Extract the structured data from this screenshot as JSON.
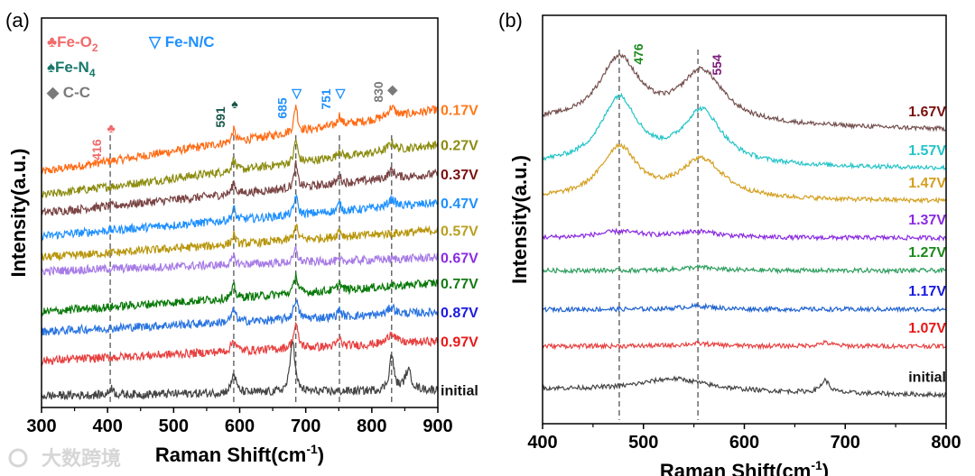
{
  "watermark": "大数跨境",
  "chart_data": [
    {
      "panel": "(a)",
      "type": "line",
      "xlabel": "Raman Shift(cm",
      "xlabel_sup": "-1",
      "xlabel_end": ")",
      "ylabel": "Intensity(a.u.)",
      "xlim": [
        300,
        900
      ],
      "ylim": [
        0,
        100
      ],
      "xticks": [
        300,
        400,
        500,
        600,
        700,
        800,
        900
      ],
      "legend": [
        {
          "symbol": "♣",
          "text": "Fe-O",
          "sub": "2",
          "color": "#f06a6a"
        },
        {
          "symbol": "▽",
          "text": " Fe-N/C",
          "sub": "",
          "color": "#1e90ff"
        },
        {
          "symbol": "♠",
          "text": "Fe-N",
          "sub": "4",
          "color": "#17786a"
        },
        {
          "symbol": "◆",
          "text": " C-C",
          "sub": "",
          "color": "#7a7a7a"
        }
      ],
      "markers": [
        {
          "x": 404,
          "label": "416",
          "symbol": "♣",
          "color": "#f06a6a"
        },
        {
          "x": 591,
          "label": "591",
          "symbol": "♠",
          "color": "#17564a"
        },
        {
          "x": 685,
          "label": "685",
          "symbol": "▽",
          "color": "#1e90ff"
        },
        {
          "x": 751,
          "label": "751",
          "symbol": "▽",
          "color": "#1e90ff"
        },
        {
          "x": 830,
          "label": "830",
          "symbol": "◆",
          "color": "#7a7a7a"
        }
      ],
      "series": [
        {
          "name": "0.17V",
          "color": "#ff6a13",
          "label_color": "#ff7a1a",
          "start": 60.5,
          "end": 76.5,
          "peaks": [
            [
              591,
              3,
              3
            ],
            [
              685,
              7,
              3
            ],
            [
              751,
              2.5,
              3
            ],
            [
              830,
              2.5,
              6
            ]
          ]
        },
        {
          "name": "0.27V",
          "color": "#8c8c10",
          "label_color": "#8c8c10",
          "start": 54.5,
          "end": 67.5,
          "peaks": [
            [
              591,
              3,
              3
            ],
            [
              685,
              6,
              3
            ],
            [
              751,
              2,
              3
            ],
            [
              830,
              2,
              6
            ]
          ]
        },
        {
          "name": "0.37V",
          "color": "#7a4444",
          "label_color": "#7a1010",
          "start": 50,
          "end": 60,
          "peaks": [
            [
              591,
              3,
              3
            ],
            [
              685,
              6,
              3
            ],
            [
              751,
              2,
              3
            ],
            [
              830,
              2,
              6
            ]
          ]
        },
        {
          "name": "0.47V",
          "color": "#1e90ff",
          "label_color": "#1e90ff",
          "start": 44,
          "end": 52.5,
          "peaks": [
            [
              591,
              3,
              3
            ],
            [
              685,
              5,
              3
            ],
            [
              751,
              2,
              3
            ],
            [
              830,
              2,
              6
            ]
          ]
        },
        {
          "name": "0.57V",
          "color": "#b8960c",
          "label_color": "#b8a020",
          "start": 38.5,
          "end": 45.5,
          "peaks": [
            [
              591,
              2.5,
              3
            ],
            [
              685,
              4,
              3
            ],
            [
              751,
              2,
              3
            ]
          ]
        },
        {
          "name": "0.67V",
          "color": "#a77ce6",
          "label_color": "#8a2be2",
          "start": 35,
          "end": 38.5,
          "peaks": [
            [
              591,
              2,
              3
            ],
            [
              685,
              3.5,
              3
            ]
          ]
        },
        {
          "name": "0.77V",
          "color": "#0a7a0a",
          "label_color": "#157a15",
          "start": 24.5,
          "end": 32,
          "peaks": [
            [
              591,
              3,
              3
            ],
            [
              685,
              5,
              3
            ],
            [
              751,
              2,
              3
            ]
          ]
        },
        {
          "name": "0.87V",
          "color": "#2a74e0",
          "label_color": "#1a1ae0",
          "start": 19.5,
          "end": 24.5,
          "peaks": [
            [
              591,
              3,
              4
            ],
            [
              685,
              5,
              4
            ],
            [
              751,
              2,
              3
            ],
            [
              830,
              2,
              6
            ]
          ]
        },
        {
          "name": "0.97V",
          "color": "#e84040",
          "label_color": "#e81818",
          "start": 12,
          "end": 17,
          "peaks": [
            [
              591,
              3,
              4
            ],
            [
              685,
              6,
              4
            ],
            [
              751,
              2,
              3
            ],
            [
              830,
              3,
              6
            ]
          ]
        },
        {
          "name": "initial",
          "color": "#444444",
          "label_color": "#111111",
          "start": 3,
          "end": 4.5,
          "peaks": [
            [
              406,
              2,
              3
            ],
            [
              591,
              5,
              4
            ],
            [
              680,
              14,
              4
            ],
            [
              830,
              9,
              4
            ],
            [
              855,
              5,
              6
            ]
          ]
        }
      ]
    },
    {
      "panel": "(b)",
      "type": "line",
      "xlabel": "Raman Shift(cm",
      "xlabel_sup": "-1",
      "xlabel_end": ")",
      "ylabel": "Intensity(a.u.)",
      "xlim": [
        400,
        800
      ],
      "ylim": [
        0,
        100
      ],
      "xticks": [
        400,
        500,
        600,
        700,
        800
      ],
      "markers": [
        {
          "x": 476,
          "label": "476",
          "color": "#1a8a1a"
        },
        {
          "x": 554,
          "label": "554",
          "color": "#7a1a7a"
        }
      ],
      "series": [
        {
          "name": "1.67V",
          "color": "#74504e",
          "label_color": "#7a1010",
          "start": 74,
          "end": 72,
          "peaks": [
            [
              476,
              15.5,
              24
            ],
            [
              558,
              12.5,
              26
            ]
          ]
        },
        {
          "name": "1.57V",
          "color": "#22c4c8",
          "label_color": "#22c4c8",
          "start": 63.5,
          "end": 62.5,
          "peaks": [
            [
              476,
              16,
              22
            ],
            [
              558,
              13,
              24
            ]
          ]
        },
        {
          "name": "1.47V",
          "color": "#d4a020",
          "label_color": "#d4a020",
          "start": 55,
          "end": 54.5,
          "peaks": [
            [
              476,
              12.5,
              22
            ],
            [
              558,
              9.5,
              26
            ]
          ]
        },
        {
          "name": "1.37V",
          "color": "#8a2be2",
          "label_color": "#8a2be2",
          "start": 45.5,
          "end": 45.5,
          "peaks": [
            [
              476,
              1.5,
              25
            ],
            [
              554,
              1.5,
              25
            ]
          ]
        },
        {
          "name": "1.27V",
          "color": "#2e9e5e",
          "label_color": "#1a8a1a",
          "start": 37.5,
          "end": 37.5,
          "peaks": [
            [
              554,
              0.8,
              20
            ]
          ]
        },
        {
          "name": "1.17V",
          "color": "#1e62d0",
          "label_color": "#1a1ae0",
          "start": 28,
          "end": 28,
          "peaks": [
            [
              554,
              0.8,
              20
            ]
          ]
        },
        {
          "name": "1.07V",
          "color": "#e84040",
          "label_color": "#e81818",
          "start": 19,
          "end": 19,
          "peaks": [
            [
              554,
              0.6,
              20
            ],
            [
              680,
              0.8,
              8
            ]
          ]
        },
        {
          "name": "initial",
          "color": "#444444",
          "label_color": "#111111",
          "start": 8.5,
          "end": 7,
          "peaks": [
            [
              530,
              3,
              40
            ],
            [
              680,
              3,
              5
            ]
          ]
        }
      ]
    }
  ]
}
